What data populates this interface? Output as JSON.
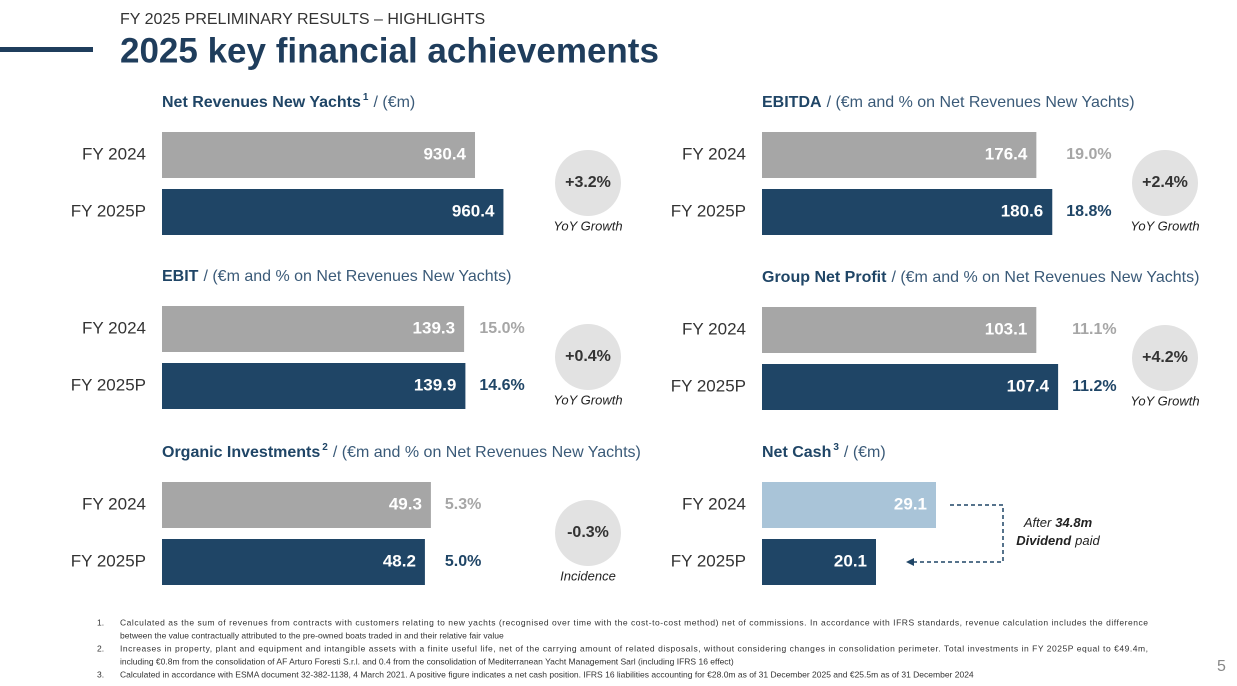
{
  "header": {
    "kicker": "FY 2025 PRELIMINARY RESULTS – HIGHLIGHTS",
    "title": "2025 key financial achievements"
  },
  "chart_data": [
    {
      "type": "bar",
      "title": "Net Revenues New Yachts",
      "title_note": "1",
      "subtitle": "/ (€m)",
      "categories": [
        "FY 2024",
        "FY 2025P"
      ],
      "values": [
        930.4,
        960.4
      ],
      "colors": [
        "#a6a6a6",
        "#1f4566"
      ],
      "xlim": [
        600,
        980
      ],
      "badge": "+3.2%",
      "badge_label": "YoY Growth"
    },
    {
      "type": "bar",
      "title": "EBITDA",
      "subtitle": "/ (€m and % on Net Revenues New Yachts)",
      "categories": [
        "FY 2024",
        "FY 2025P"
      ],
      "values": [
        176.4,
        180.6
      ],
      "colors": [
        "#a6a6a6",
        "#1f4566"
      ],
      "xlim": [
        104,
        199
      ],
      "percent_labels": [
        "19.0%",
        "18.8%"
      ],
      "badge": "+2.4%",
      "badge_label": "YoY Growth"
    },
    {
      "type": "bar",
      "title": "EBIT",
      "subtitle": "/ (€m and % on Net Revenues New Yachts)",
      "categories": [
        "FY 2024",
        "FY 2025P"
      ],
      "values": [
        139.3,
        139.9
      ],
      "colors": [
        "#a6a6a6",
        "#1f4566"
      ],
      "xlim": [
        0,
        166
      ],
      "percent_labels": [
        "15.0%",
        "14.6%"
      ],
      "badge": "+0.4%",
      "badge_label": "YoY Growth"
    },
    {
      "type": "bar",
      "title": "Group Net Profit",
      "subtitle": "/ (€m and % on Net Revenues New Yachts)",
      "categories": [
        "FY 2024",
        "FY 2025P"
      ],
      "values": [
        103.1,
        107.4
      ],
      "colors": [
        "#a6a6a6",
        "#1f4566"
      ],
      "xlim": [
        49,
        120
      ],
      "percent_labels": [
        "11.1%",
        "11.2%"
      ],
      "badge": "+4.2%",
      "badge_label": "YoY Growth"
    },
    {
      "type": "bar",
      "title": "Organic Investments",
      "title_note": "2",
      "subtitle": "/ (€m and % on Net Revenues New Yachts)",
      "categories": [
        "FY 2024",
        "FY 2025P"
      ],
      "values": [
        49.3,
        48.2
      ],
      "colors": [
        "#a6a6a6",
        "#1f4566"
      ],
      "xlim": [
        0,
        66
      ],
      "percent_labels": [
        "5.3%",
        "5.0%"
      ],
      "badge": "-0.3%",
      "badge_label": "Incidence"
    },
    {
      "type": "bar",
      "title": "Net Cash",
      "title_note": "3",
      "subtitle": "/ (€m)",
      "categories": [
        "FY 2024",
        "FY 2025P"
      ],
      "values": [
        29.1,
        20.1
      ],
      "colors": [
        "#a9c4d8",
        "#1f4566"
      ],
      "xlim": [
        3,
        57
      ],
      "annotation": [
        "After",
        "34.8m",
        "Dividend",
        "paid"
      ]
    }
  ],
  "footnotes": [
    {
      "number": "1.",
      "lines": [
        "Calculated as the sum of revenues from contracts with customers relating to new yachts (recognised over time with the cost-to-cost method) net of commissions. In accordance with IFRS standards, revenue calculation includes the difference",
        "between the value contractually attributed to the pre-owned boats traded in and their relative fair value"
      ]
    },
    {
      "number": "2.",
      "lines": [
        "Increases in property, plant and equipment and intangible assets with a finite useful life, net of the carrying amount of related disposals, without considering changes in consolidation perimeter. Total investments in FY 2025P equal to €49.4m,",
        "including €0.8m from the consolidation of AF Arturo Foresti S.r.l. and 0.4 from the consolidation of Mediterranean Yacht Management Sarl (including IFRS 16 effect)"
      ]
    },
    {
      "number": "3.",
      "lines": [
        "Calculated in accordance with ESMA document 32-382-1138, 4 March 2021. A positive figure indicates a net cash position. IFRS 16 liabilities accounting for €28.0m as of 31 December 2025 and €25.5m as of 31 December 2024"
      ]
    }
  ],
  "page_number": "5"
}
